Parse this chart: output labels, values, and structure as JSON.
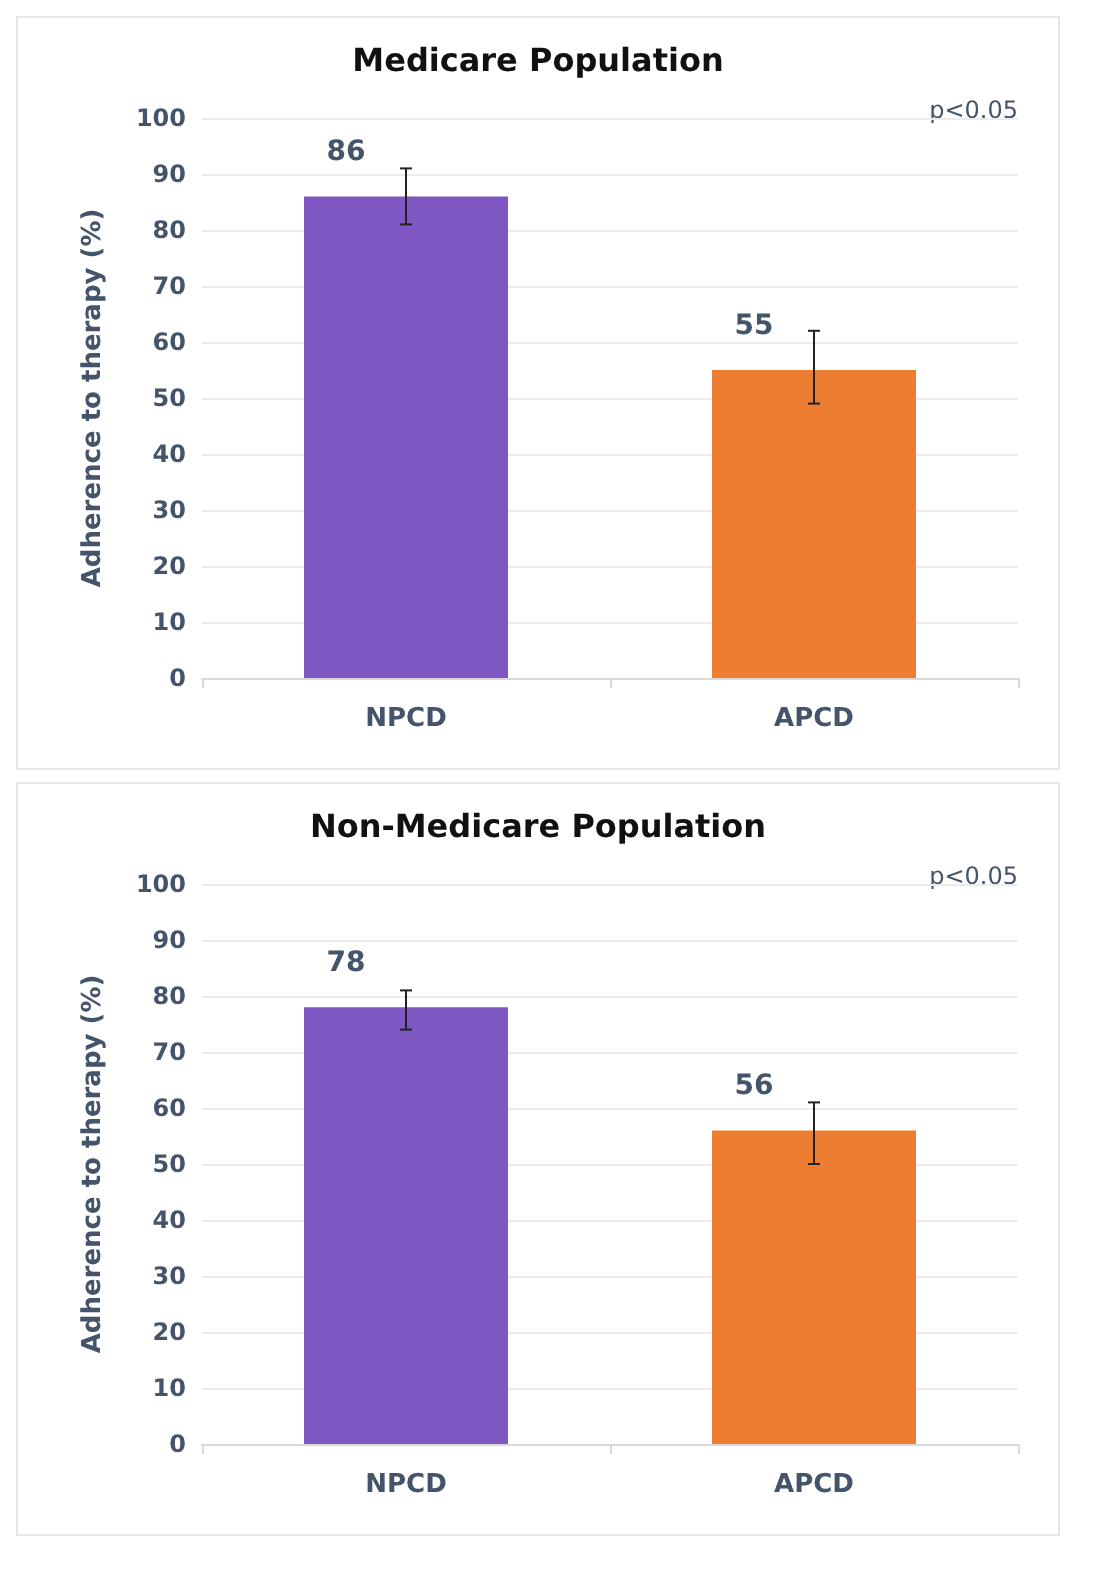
{
  "chart_data": [
    {
      "type": "bar",
      "title": "Medicare Population",
      "ylabel": "Adherence to therapy (%)",
      "categories": [
        "NPCD",
        "APCD"
      ],
      "values": [
        86,
        55
      ],
      "colors": [
        "#7e57c2",
        "#ed7d31"
      ],
      "errors": [
        [
          81,
          91
        ],
        [
          49,
          62
        ]
      ],
      "ylim": [
        0,
        100
      ],
      "yticks": [
        0,
        10,
        20,
        30,
        40,
        50,
        60,
        70,
        80,
        90,
        100
      ],
      "grid": "y",
      "data_labels": true,
      "annotations": [
        "p<0.05"
      ]
    },
    {
      "type": "bar",
      "title": "Non-Medicare Population",
      "ylabel": "Adherence to therapy (%)",
      "categories": [
        "NPCD",
        "APCD"
      ],
      "values": [
        78,
        56
      ],
      "colors": [
        "#7e57c2",
        "#ed7d31"
      ],
      "errors": [
        [
          74,
          81
        ],
        [
          50,
          61
        ]
      ],
      "ylim": [
        0,
        100
      ],
      "yticks": [
        0,
        10,
        20,
        30,
        40,
        50,
        60,
        70,
        80,
        90,
        100
      ],
      "grid": "y",
      "data_labels": true,
      "annotations": [
        "p<0.05"
      ]
    }
  ]
}
